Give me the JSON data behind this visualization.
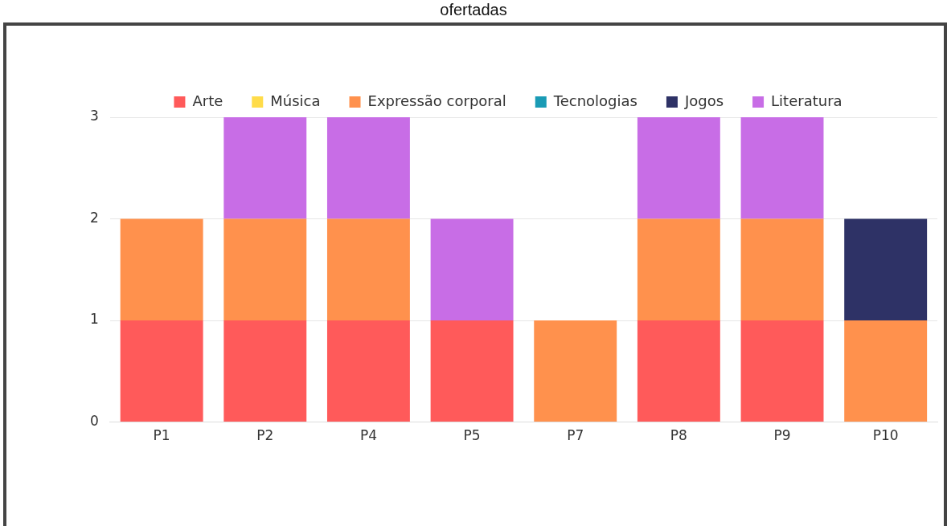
{
  "chart_data": {
    "type": "bar",
    "title": "ofertadas",
    "stacked": true,
    "categories": [
      "P1",
      "P2",
      "P4",
      "P5",
      "P7",
      "P8",
      "P9",
      "P10"
    ],
    "series": [
      {
        "name": "Arte",
        "color": "#ff5a5a",
        "values": [
          1,
          1,
          1,
          1,
          0,
          1,
          1,
          0
        ]
      },
      {
        "name": "Música",
        "color": "#ffdc4a",
        "values": [
          0,
          0,
          0,
          0,
          0,
          0,
          0,
          0
        ]
      },
      {
        "name": "Expressão corporal",
        "color": "#ff914d",
        "values": [
          1,
          1,
          1,
          0,
          1,
          1,
          1,
          1
        ]
      },
      {
        "name": "Tecnologias",
        "color": "#1a9bb5",
        "values": [
          0,
          0,
          0,
          0,
          0,
          0,
          0,
          0
        ]
      },
      {
        "name": "Jogos",
        "color": "#2e3266",
        "values": [
          0,
          0,
          0,
          0,
          0,
          0,
          0,
          1
        ]
      },
      {
        "name": "Literatura",
        "color": "#c86de6",
        "values": [
          0,
          1,
          1,
          1,
          0,
          1,
          1,
          0
        ]
      }
    ],
    "ylim": [
      0,
      3
    ],
    "yticks": [
      0,
      1,
      2,
      3
    ],
    "grid": "y",
    "legend": "top"
  }
}
